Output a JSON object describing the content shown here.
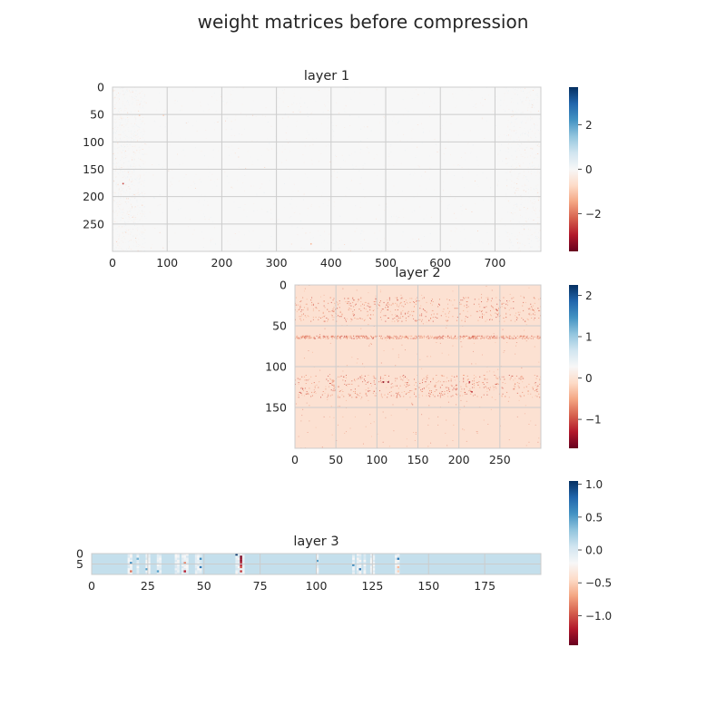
{
  "figure_title": "weight matrices before compression",
  "chart_data": [
    {
      "type": "heatmap",
      "title": "layer 1",
      "n_cols": 784,
      "n_rows": 300,
      "x_ticks": [
        0,
        100,
        200,
        300,
        400,
        500,
        600,
        700
      ],
      "x_tick_labels": [
        "0",
        "100",
        "200",
        "300",
        "400",
        "500",
        "600",
        "700"
      ],
      "y_ticks": [
        0,
        50,
        100,
        150,
        200,
        250
      ],
      "y_tick_labels": [
        "0",
        "50",
        "100",
        "150",
        "200",
        "250"
      ],
      "value_range": [
        -3.7,
        3.7
      ],
      "background_value": 0.0,
      "colormap": "RdBu",
      "grid": true,
      "colorbar_ticks": [
        2,
        0,
        -2
      ],
      "colorbar_tick_labels": [
        "2",
        "0",
        "−2"
      ],
      "dense_column_bands": [
        [
          0,
          60
        ],
        [
          720,
          784
        ]
      ],
      "notable_cells": [
        {
          "row": 50,
          "col": 48,
          "value": -0.9
        },
        {
          "row": 50,
          "col": 92,
          "value": -0.9
        },
        {
          "row": 175,
          "col": 18,
          "value": -2.5
        },
        {
          "row": 285,
          "col": 362,
          "value": -1.2
        }
      ]
    },
    {
      "type": "heatmap",
      "title": "layer 2",
      "n_cols": 300,
      "n_rows": 200,
      "x_ticks": [
        0,
        50,
        100,
        150,
        200,
        250
      ],
      "x_tick_labels": [
        "0",
        "50",
        "100",
        "150",
        "200",
        "250"
      ],
      "y_ticks": [
        0,
        50,
        100,
        150
      ],
      "y_tick_labels": [
        "0",
        "50",
        "100",
        "150"
      ],
      "value_range": [
        -1.7,
        2.25
      ],
      "background_value": -0.03,
      "colormap": "RdBu",
      "grid": true,
      "colorbar_ticks": [
        2,
        1,
        0,
        -1
      ],
      "colorbar_tick_labels": [
        "2",
        "1",
        "0",
        "−1"
      ],
      "dense_row_bands": [
        [
          15,
          45
        ],
        [
          62,
          66
        ],
        [
          110,
          138
        ]
      ],
      "notable_cells": [
        {
          "row": 118,
          "col": 107,
          "value": -1.5
        },
        {
          "row": 118,
          "col": 113,
          "value": -1.5
        },
        {
          "row": 118,
          "col": 212,
          "value": -1.3
        },
        {
          "row": 130,
          "col": 215,
          "value": -1.2
        }
      ]
    },
    {
      "type": "heatmap",
      "title": "layer 3",
      "n_cols": 200,
      "n_rows": 10,
      "x_ticks": [
        0,
        25,
        50,
        75,
        100,
        125,
        150,
        175
      ],
      "x_tick_labels": [
        "0",
        "25",
        "50",
        "75",
        "100",
        "125",
        "150",
        "175"
      ],
      "y_ticks": [
        0,
        5
      ],
      "y_tick_labels": [
        "0",
        "5"
      ],
      "value_range": [
        -1.45,
        1.05
      ],
      "background_value": 0.1,
      "colormap": "RdBu",
      "grid": true,
      "colorbar_ticks": [
        1.0,
        0.5,
        0.0,
        -0.5,
        -1.0
      ],
      "colorbar_tick_labels": [
        "1.0",
        "0.5",
        "0.0",
        "−0.5",
        "−1.0"
      ],
      "light_columns": [
        16,
        17,
        20,
        24,
        25,
        29,
        30,
        37,
        38,
        40,
        41,
        42,
        46,
        47,
        48,
        64,
        65,
        66,
        67,
        100,
        116,
        118,
        119,
        121,
        124,
        125,
        135,
        136
      ],
      "notable_cells": [
        {
          "row": 0,
          "col": 64,
          "value": 1.0
        },
        {
          "row": 1,
          "col": 66,
          "value": -1.4
        },
        {
          "row": 2,
          "col": 66,
          "value": -1.3
        },
        {
          "row": 3,
          "col": 66,
          "value": -1.3
        },
        {
          "row": 4,
          "col": 66,
          "value": -1.2
        },
        {
          "row": 5,
          "col": 66,
          "value": -1.2
        },
        {
          "row": 6,
          "col": 66,
          "value": -1.0
        },
        {
          "row": 8,
          "col": 66,
          "value": -1.1
        },
        {
          "row": 8,
          "col": 41,
          "value": -1.2
        },
        {
          "row": 4,
          "col": 41,
          "value": -0.8
        },
        {
          "row": 6,
          "col": 48,
          "value": 0.7
        },
        {
          "row": 2,
          "col": 48,
          "value": 0.6
        },
        {
          "row": 4,
          "col": 17,
          "value": 0.6
        },
        {
          "row": 8,
          "col": 17,
          "value": -0.9
        },
        {
          "row": 2,
          "col": 20,
          "value": 0.4
        },
        {
          "row": 7,
          "col": 24,
          "value": 0.5
        },
        {
          "row": 8,
          "col": 29,
          "value": 0.5
        },
        {
          "row": 3,
          "col": 100,
          "value": 0.5
        },
        {
          "row": 5,
          "col": 116,
          "value": 0.6
        },
        {
          "row": 7,
          "col": 119,
          "value": 0.7
        },
        {
          "row": 2,
          "col": 136,
          "value": 0.7
        },
        {
          "row": 6,
          "col": 136,
          "value": -0.6
        },
        {
          "row": 8,
          "col": 136,
          "value": -0.5
        }
      ]
    }
  ]
}
